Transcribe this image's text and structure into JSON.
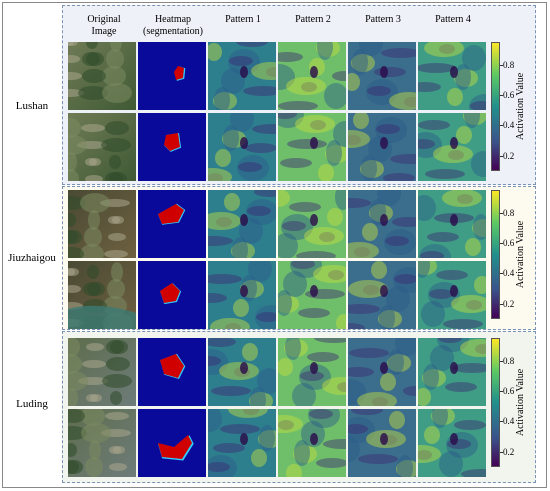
{
  "headers": [
    "Original\nImage",
    "Heatmap\n(segmentation)",
    "Pattern 1",
    "Pattern 2",
    "Pattern 3",
    "Pattern 4"
  ],
  "groups": [
    {
      "label": "Lushan"
    },
    {
      "label": "Jiuzhaigou"
    },
    {
      "label": "Luding"
    }
  ],
  "colorbar": {
    "title": "Activation Value",
    "ticks": [
      "0.8",
      "0.6",
      "0.4",
      "0.2"
    ],
    "tick_values": [
      0.8,
      0.6,
      0.4,
      0.2
    ],
    "range": [
      0.1,
      0.95
    ],
    "colormap": "viridis"
  },
  "colors": {
    "heatmap_background": "#0a0a9a",
    "heatmap_hot": "#d00000",
    "group_border": "#7a93b5"
  }
}
